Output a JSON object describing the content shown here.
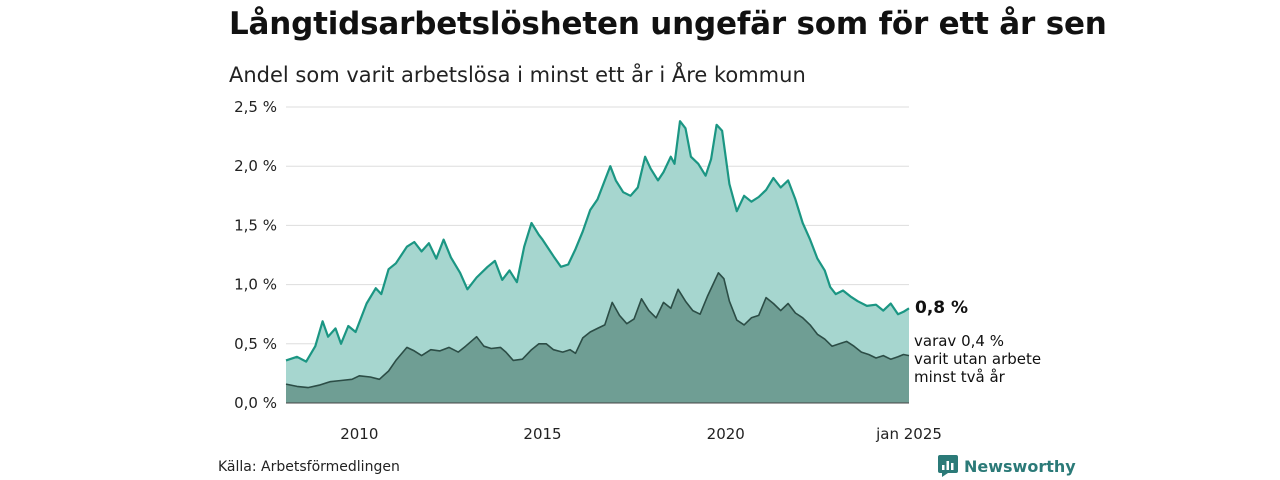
{
  "title": "Långtidsarbetslösheten ungefär som för ett år sen",
  "subtitle": "Andel som varit arbetslösa i minst ett år i Åre kommun",
  "source": "Källa: Arbetsförmedlingen",
  "brand": "Newsworthy",
  "colors": {
    "series1_fill": "#a6d6cf",
    "series1_line": "#1b9683",
    "series2_fill": "#6f9e94",
    "series2_line": "#2c4d46",
    "grid": "#dddddd",
    "brand": "#2b7a78"
  },
  "chart_data": {
    "type": "area",
    "title": "Långtidsarbetslösheten ungefär som för ett år sen",
    "subtitle": "Andel som varit arbetslösa i minst ett år i Åre kommun",
    "xlim": [
      2008.0,
      2025.0
    ],
    "ylim": [
      0,
      2.5
    ],
    "y_ticks": [
      0,
      0.5,
      1.0,
      1.5,
      2.0,
      2.5
    ],
    "y_tick_labels": [
      "0,0 %",
      "0,5 %",
      "1,0 %",
      "1,5 %",
      "2,0 %",
      "2,5 %"
    ],
    "x_ticks": [
      2010,
      2015,
      2020,
      2025
    ],
    "x_tick_labels": [
      "2010",
      "2015",
      "2020",
      "jan 2025"
    ],
    "grid": "horizontal",
    "end_labels": {
      "total": "0,8 %",
      "long_term": [
        "varav 0,4 %",
        "varit utan arbete",
        "minst två år"
      ]
    },
    "series": [
      {
        "values": [
          [
            2008.0,
            0.36
          ],
          [
            2008.3,
            0.39
          ],
          [
            2008.55,
            0.35
          ],
          [
            2008.8,
            0.48
          ],
          [
            2009.0,
            0.69
          ],
          [
            2009.15,
            0.56
          ],
          [
            2009.35,
            0.63
          ],
          [
            2009.5,
            0.5
          ],
          [
            2009.7,
            0.65
          ],
          [
            2009.9,
            0.6
          ],
          [
            2010.2,
            0.84
          ],
          [
            2010.45,
            0.97
          ],
          [
            2010.6,
            0.92
          ],
          [
            2010.8,
            1.13
          ],
          [
            2011.0,
            1.18
          ],
          [
            2011.3,
            1.32
          ],
          [
            2011.5,
            1.36
          ],
          [
            2011.7,
            1.28
          ],
          [
            2011.9,
            1.35
          ],
          [
            2012.1,
            1.22
          ],
          [
            2012.3,
            1.38
          ],
          [
            2012.5,
            1.23
          ],
          [
            2012.75,
            1.1
          ],
          [
            2012.95,
            0.96
          ],
          [
            2013.2,
            1.06
          ],
          [
            2013.5,
            1.15
          ],
          [
            2013.7,
            1.2
          ],
          [
            2013.9,
            1.04
          ],
          [
            2014.1,
            1.12
          ],
          [
            2014.3,
            1.02
          ],
          [
            2014.5,
            1.32
          ],
          [
            2014.7,
            1.52
          ],
          [
            2014.9,
            1.42
          ],
          [
            2015.0,
            1.38
          ],
          [
            2015.3,
            1.24
          ],
          [
            2015.5,
            1.15
          ],
          [
            2015.7,
            1.17
          ],
          [
            2015.9,
            1.3
          ],
          [
            2016.1,
            1.45
          ],
          [
            2016.3,
            1.63
          ],
          [
            2016.5,
            1.72
          ],
          [
            2016.7,
            1.88
          ],
          [
            2016.85,
            2.0
          ],
          [
            2017.0,
            1.88
          ],
          [
            2017.2,
            1.78
          ],
          [
            2017.4,
            1.75
          ],
          [
            2017.6,
            1.82
          ],
          [
            2017.8,
            2.08
          ],
          [
            2017.95,
            1.98
          ],
          [
            2018.15,
            1.88
          ],
          [
            2018.3,
            1.95
          ],
          [
            2018.5,
            2.08
          ],
          [
            2018.6,
            2.02
          ],
          [
            2018.75,
            2.38
          ],
          [
            2018.9,
            2.32
          ],
          [
            2019.05,
            2.08
          ],
          [
            2019.25,
            2.02
          ],
          [
            2019.45,
            1.92
          ],
          [
            2019.6,
            2.06
          ],
          [
            2019.75,
            2.35
          ],
          [
            2019.9,
            2.3
          ],
          [
            2020.1,
            1.85
          ],
          [
            2020.3,
            1.62
          ],
          [
            2020.5,
            1.75
          ],
          [
            2020.7,
            1.7
          ],
          [
            2020.9,
            1.74
          ],
          [
            2021.1,
            1.8
          ],
          [
            2021.3,
            1.9
          ],
          [
            2021.5,
            1.82
          ],
          [
            2021.7,
            1.88
          ],
          [
            2021.9,
            1.72
          ],
          [
            2022.1,
            1.52
          ],
          [
            2022.3,
            1.38
          ],
          [
            2022.5,
            1.22
          ],
          [
            2022.7,
            1.12
          ],
          [
            2022.85,
            0.98
          ],
          [
            2023.0,
            0.92
          ],
          [
            2023.2,
            0.95
          ],
          [
            2023.4,
            0.9
          ],
          [
            2023.6,
            0.86
          ],
          [
            2023.85,
            0.82
          ],
          [
            2024.1,
            0.83
          ],
          [
            2024.3,
            0.78
          ],
          [
            2024.5,
            0.84
          ],
          [
            2024.7,
            0.75
          ],
          [
            2024.85,
            0.77
          ],
          [
            2025.0,
            0.8
          ]
        ]
      },
      {
        "values": [
          [
            2008.0,
            0.16
          ],
          [
            2008.3,
            0.14
          ],
          [
            2008.6,
            0.13
          ],
          [
            2008.9,
            0.15
          ],
          [
            2009.2,
            0.18
          ],
          [
            2009.5,
            0.19
          ],
          [
            2009.8,
            0.2
          ],
          [
            2010.0,
            0.23
          ],
          [
            2010.3,
            0.22
          ],
          [
            2010.55,
            0.2
          ],
          [
            2010.8,
            0.27
          ],
          [
            2011.0,
            0.36
          ],
          [
            2011.3,
            0.47
          ],
          [
            2011.5,
            0.44
          ],
          [
            2011.7,
            0.4
          ],
          [
            2011.95,
            0.45
          ],
          [
            2012.2,
            0.44
          ],
          [
            2012.45,
            0.47
          ],
          [
            2012.7,
            0.43
          ],
          [
            2012.9,
            0.48
          ],
          [
            2013.2,
            0.56
          ],
          [
            2013.4,
            0.48
          ],
          [
            2013.6,
            0.46
          ],
          [
            2013.85,
            0.47
          ],
          [
            2014.0,
            0.43
          ],
          [
            2014.2,
            0.36
          ],
          [
            2014.45,
            0.37
          ],
          [
            2014.7,
            0.45
          ],
          [
            2014.9,
            0.5
          ],
          [
            2015.1,
            0.5
          ],
          [
            2015.3,
            0.45
          ],
          [
            2015.55,
            0.43
          ],
          [
            2015.75,
            0.45
          ],
          [
            2015.9,
            0.42
          ],
          [
            2016.1,
            0.55
          ],
          [
            2016.3,
            0.6
          ],
          [
            2016.5,
            0.63
          ],
          [
            2016.7,
            0.66
          ],
          [
            2016.9,
            0.85
          ],
          [
            2017.1,
            0.74
          ],
          [
            2017.3,
            0.67
          ],
          [
            2017.5,
            0.71
          ],
          [
            2017.7,
            0.88
          ],
          [
            2017.9,
            0.78
          ],
          [
            2018.1,
            0.72
          ],
          [
            2018.3,
            0.85
          ],
          [
            2018.5,
            0.8
          ],
          [
            2018.7,
            0.96
          ],
          [
            2018.9,
            0.86
          ],
          [
            2019.1,
            0.78
          ],
          [
            2019.3,
            0.75
          ],
          [
            2019.5,
            0.9
          ],
          [
            2019.65,
            1.0
          ],
          [
            2019.8,
            1.1
          ],
          [
            2019.95,
            1.05
          ],
          [
            2020.1,
            0.86
          ],
          [
            2020.3,
            0.7
          ],
          [
            2020.5,
            0.66
          ],
          [
            2020.7,
            0.72
          ],
          [
            2020.9,
            0.74
          ],
          [
            2021.1,
            0.89
          ],
          [
            2021.3,
            0.84
          ],
          [
            2021.5,
            0.78
          ],
          [
            2021.7,
            0.84
          ],
          [
            2021.9,
            0.76
          ],
          [
            2022.1,
            0.72
          ],
          [
            2022.3,
            0.66
          ],
          [
            2022.5,
            0.58
          ],
          [
            2022.7,
            0.54
          ],
          [
            2022.9,
            0.48
          ],
          [
            2023.1,
            0.5
          ],
          [
            2023.3,
            0.52
          ],
          [
            2023.5,
            0.48
          ],
          [
            2023.7,
            0.43
          ],
          [
            2023.9,
            0.41
          ],
          [
            2024.1,
            0.38
          ],
          [
            2024.3,
            0.4
          ],
          [
            2024.5,
            0.37
          ],
          [
            2024.7,
            0.39
          ],
          [
            2024.85,
            0.41
          ],
          [
            2025.0,
            0.4
          ]
        ]
      }
    ]
  }
}
